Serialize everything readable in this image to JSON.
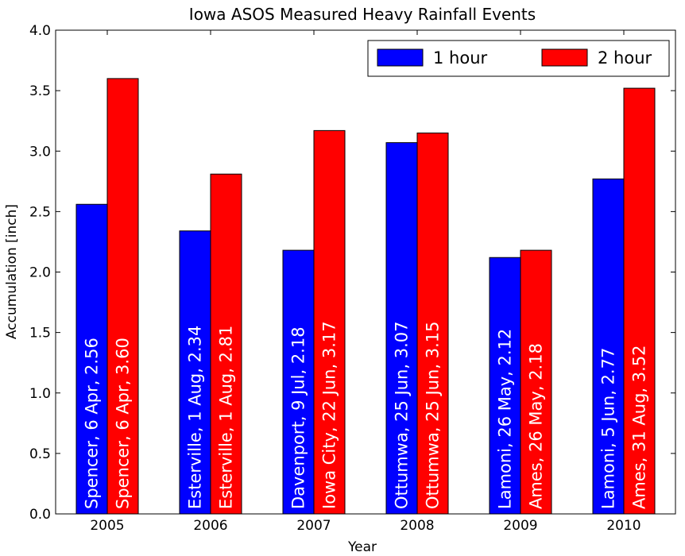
{
  "chart_data": {
    "type": "bar",
    "title": "Iowa ASOS Measured Heavy Rainfall Events",
    "xlabel": "Year",
    "ylabel": "Accumulation [inch]",
    "categories": [
      "2005",
      "2006",
      "2007",
      "2008",
      "2009",
      "2010"
    ],
    "ylim": [
      0,
      4.0
    ],
    "yticks": [
      "0.0",
      "0.5",
      "1.0",
      "1.5",
      "2.0",
      "2.5",
      "3.0",
      "3.5",
      "4.0"
    ],
    "legend_position": "top-right",
    "grid": false,
    "series": [
      {
        "name": "1 hour",
        "color": "#0000ff",
        "values": [
          2.56,
          2.34,
          2.18,
          3.07,
          2.12,
          2.77
        ],
        "labels": [
          "Spencer, 6 Apr, 2.56",
          "Esterville, 1 Aug, 2.34",
          "Davenport, 9 Jul, 2.18",
          "Ottumwa, 25 Jun, 3.07",
          "Lamoni, 26 May, 2.12",
          "Lamoni, 5 Jun, 2.77"
        ]
      },
      {
        "name": "2 hour",
        "color": "#ff0000",
        "values": [
          3.6,
          2.81,
          3.17,
          3.15,
          2.18,
          3.52
        ],
        "labels": [
          "Spencer, 6 Apr, 3.60",
          "Esterville, 1 Aug, 2.81",
          "Iowa City, 22 Jun, 3.17",
          "Ottumwa, 25 Jun, 3.15",
          "Ames, 26 May, 2.18",
          "Ames, 31 Aug, 3.52"
        ]
      }
    ]
  }
}
